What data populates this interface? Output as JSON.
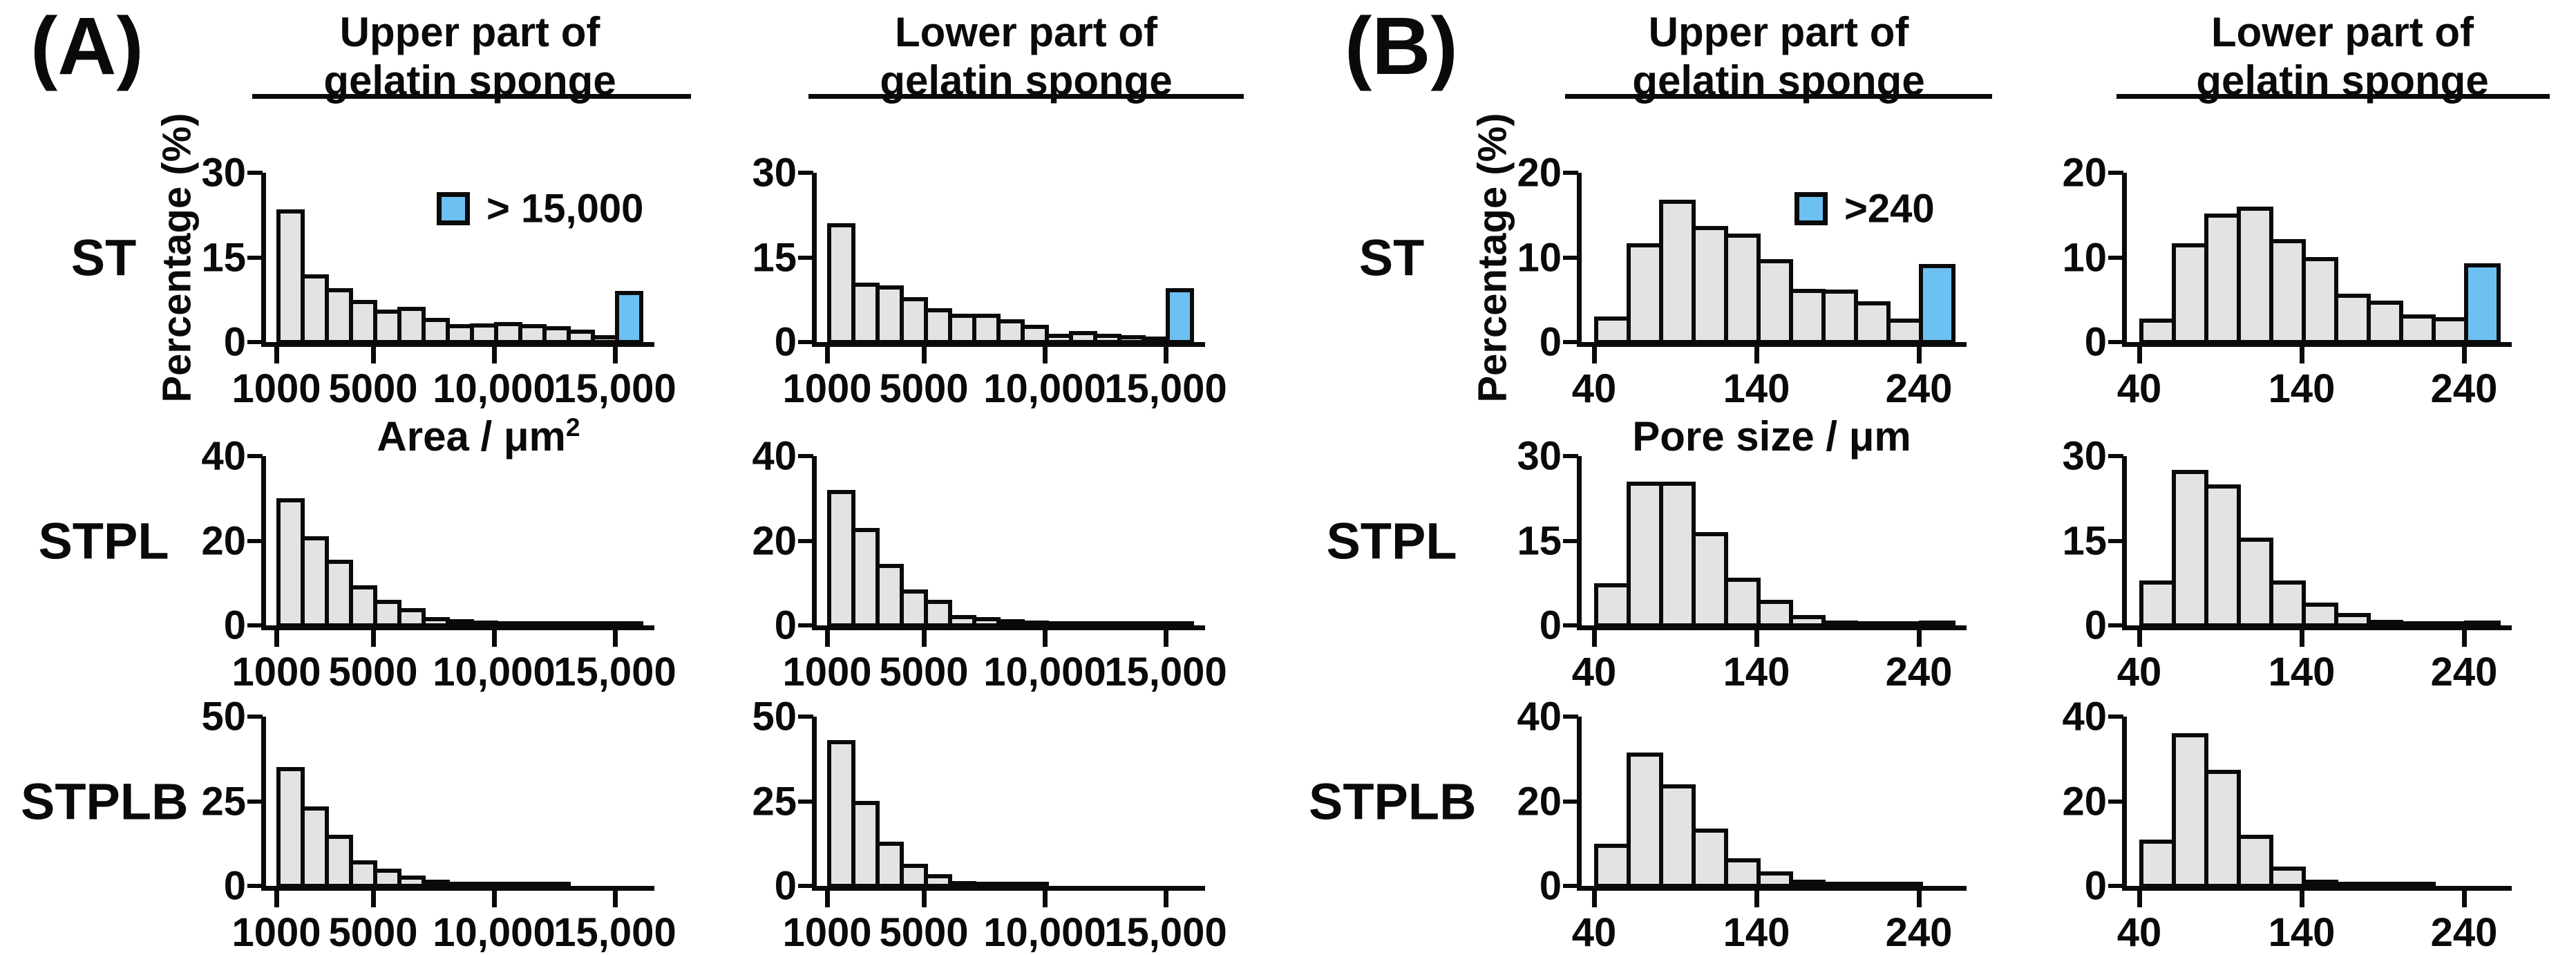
{
  "figure": {
    "background": "#ffffff",
    "colors": {
      "bar_fill": "#e3e3e3",
      "bar_border": "#0a0a0a",
      "overflow_blue": "#6cc0f2",
      "text": "#0a0a0a"
    },
    "panels": [
      {
        "label": "(A)",
        "column_headers": [
          [
            "Upper part of",
            "gelatin sponge"
          ],
          [
            "Lower part of",
            "gelatin sponge"
          ]
        ],
        "row_labels": [
          "ST",
          "STPL",
          "STPLB"
        ],
        "ylabel": "Percentage (%)",
        "xlabel": "Area / μm",
        "xlabel_sup": "2",
        "legend_label": "> 15,000",
        "x_tick_labels": [
          "1000",
          "5000",
          "10,000",
          "15,000"
        ]
      },
      {
        "label": "(B)",
        "column_headers": [
          [
            "Upper part of",
            "gelatin sponge"
          ],
          [
            "Lower part of",
            "gelatin sponge"
          ]
        ],
        "row_labels": [
          "ST",
          "STPL",
          "STPLB"
        ],
        "ylabel": "Percentage (%)",
        "xlabel": "Pore size / μm",
        "xlabel_sup": "",
        "legend_label": ">240",
        "x_tick_labels": [
          "40",
          "140",
          "240"
        ]
      }
    ]
  },
  "chart_data": [
    {
      "key": "A-ST-upper",
      "type": "bar",
      "panel": "A",
      "row": "ST",
      "column": "Upper part of gelatin sponge",
      "xlabel": "Area / μm2",
      "ylabel": "Percentage (%)",
      "bin_start": 1000,
      "bin_width": 1000,
      "ylim": [
        0,
        30
      ],
      "yticks": [
        0,
        15,
        30
      ],
      "x_tick_values": [
        1000,
        5000,
        10000,
        15000
      ],
      "values": [
        23.5,
        12,
        9.5,
        7.5,
        5.8,
        6.3,
        4.3,
        3.2,
        3.3,
        3.5,
        3.2,
        2.8,
        2.2,
        1.2
      ],
      "overflow_label": "> 15,000",
      "overflow_value": 9.0,
      "overflow_is_blue": true,
      "legend": "> 15,000"
    },
    {
      "key": "A-ST-lower",
      "type": "bar",
      "panel": "A",
      "row": "ST",
      "column": "Lower part of gelatin sponge",
      "bin_start": 1000,
      "bin_width": 1000,
      "ylim": [
        0,
        30
      ],
      "yticks": [
        0,
        15,
        30
      ],
      "x_tick_values": [
        1000,
        5000,
        10000,
        15000
      ],
      "values": [
        21,
        10.5,
        10,
        8,
        6,
        5,
        5,
        4,
        3,
        1.5,
        2,
        1.5,
        1.2,
        1
      ],
      "overflow_label": "> 15,000",
      "overflow_value": 9.5,
      "overflow_is_blue": true
    },
    {
      "key": "A-STPL-upper",
      "type": "bar",
      "panel": "A",
      "row": "STPL",
      "column": "Upper part of gelatin sponge",
      "bin_start": 1000,
      "bin_width": 1000,
      "ylim": [
        0,
        40
      ],
      "yticks": [
        0,
        20,
        40
      ],
      "x_tick_values": [
        1000,
        5000,
        10000,
        15000
      ],
      "values": [
        30,
        21,
        15.5,
        9.5,
        6,
        4,
        2,
        1.5,
        1.2,
        1,
        0.8,
        0.6,
        0.5,
        0.5
      ],
      "overflow_label": "> 15,000",
      "overflow_value": 0.8,
      "overflow_is_blue": false
    },
    {
      "key": "A-STPL-lower",
      "type": "bar",
      "panel": "A",
      "row": "STPL",
      "column": "Lower part of gelatin sponge",
      "bin_start": 1000,
      "bin_width": 1000,
      "ylim": [
        0,
        40
      ],
      "yticks": [
        0,
        20,
        40
      ],
      "x_tick_values": [
        1000,
        5000,
        10000,
        15000
      ],
      "values": [
        32,
        23,
        14.5,
        8.5,
        6,
        2.5,
        2,
        1.5,
        1.2,
        1,
        0.8,
        0.5,
        0.4,
        0.4
      ],
      "overflow_label": "> 15,000",
      "overflow_value": 0.6,
      "overflow_is_blue": false
    },
    {
      "key": "A-STPLB-upper",
      "type": "bar",
      "panel": "A",
      "row": "STPLB",
      "column": "Upper part of gelatin sponge",
      "bin_start": 1000,
      "bin_width": 1000,
      "ylim": [
        0,
        50
      ],
      "yticks": [
        0,
        25,
        50
      ],
      "x_tick_values": [
        1000,
        5000,
        10000,
        15000
      ],
      "values": [
        35,
        23.5,
        15,
        7.5,
        5,
        3,
        1.8,
        1.2,
        0.8,
        0.5,
        0.4,
        0.3,
        0.2,
        0.2
      ],
      "overflow_label": "> 15,000",
      "overflow_value": 0,
      "overflow_is_blue": false
    },
    {
      "key": "A-STPLB-lower",
      "type": "bar",
      "panel": "A",
      "row": "STPLB",
      "column": "Lower part of gelatin sponge",
      "bin_start": 1000,
      "bin_width": 1000,
      "ylim": [
        0,
        50
      ],
      "yticks": [
        0,
        25,
        50
      ],
      "x_tick_values": [
        1000,
        5000,
        10000,
        15000
      ],
      "values": [
        43,
        25,
        13,
        6.5,
        3.5,
        1.5,
        1,
        0.5,
        0.3,
        0.2,
        0.1,
        0.1,
        0.1,
        0.1
      ],
      "overflow_label": "> 15,000",
      "overflow_value": 0,
      "overflow_is_blue": false
    },
    {
      "key": "B-ST-upper",
      "type": "bar",
      "panel": "B",
      "row": "ST",
      "column": "Upper part of gelatin sponge",
      "xlabel": "Pore size / μm",
      "ylabel": "Percentage (%)",
      "bin_start": 40,
      "bin_width": 20,
      "ylim": [
        0,
        20
      ],
      "yticks": [
        0,
        10,
        20
      ],
      "x_tick_values": [
        40,
        140,
        240
      ],
      "values": [
        3,
        11.7,
        16.8,
        13.7,
        12.8,
        9.8,
        6.3,
        6.2,
        4.8,
        2.8
      ],
      "overflow_label": ">240",
      "overflow_value": 9.2,
      "overflow_is_blue": true,
      "legend": ">240"
    },
    {
      "key": "B-ST-lower",
      "type": "bar",
      "panel": "B",
      "row": "ST",
      "column": "Lower part of gelatin sponge",
      "bin_start": 40,
      "bin_width": 20,
      "ylim": [
        0,
        20
      ],
      "yticks": [
        0,
        10,
        20
      ],
      "x_tick_values": [
        40,
        140,
        240
      ],
      "values": [
        2.8,
        11.7,
        15.2,
        16,
        12.2,
        10,
        5.7,
        4.9,
        3.3,
        2.9
      ],
      "overflow_label": ">240",
      "overflow_value": 9.3,
      "overflow_is_blue": true
    },
    {
      "key": "B-STPL-upper",
      "type": "bar",
      "panel": "B",
      "row": "STPL",
      "column": "Upper part of gelatin sponge",
      "bin_start": 40,
      "bin_width": 20,
      "ylim": [
        0,
        30
      ],
      "yticks": [
        0,
        15,
        30
      ],
      "x_tick_values": [
        40,
        140,
        240
      ],
      "values": [
        7.5,
        25.5,
        25.5,
        16.5,
        8.5,
        4.5,
        1.8,
        0.8,
        0.7,
        0.5
      ],
      "overflow_label": ">240",
      "overflow_value": 0.8,
      "overflow_is_blue": false
    },
    {
      "key": "B-STPL-lower",
      "type": "bar",
      "panel": "B",
      "row": "STPL",
      "column": "Lower part of gelatin sponge",
      "bin_start": 40,
      "bin_width": 20,
      "ylim": [
        0,
        30
      ],
      "yticks": [
        0,
        15,
        30
      ],
      "x_tick_values": [
        40,
        140,
        240
      ],
      "values": [
        8,
        27.5,
        25,
        15.5,
        8,
        4,
        2.2,
        1,
        0.7,
        0.5
      ],
      "overflow_label": ">240",
      "overflow_value": 0.8,
      "overflow_is_blue": false
    },
    {
      "key": "B-STPLB-upper",
      "type": "bar",
      "panel": "B",
      "row": "STPLB",
      "column": "Upper part of gelatin sponge",
      "bin_start": 40,
      "bin_width": 20,
      "ylim": [
        0,
        40
      ],
      "yticks": [
        0,
        20,
        40
      ],
      "x_tick_values": [
        40,
        140,
        240
      ],
      "values": [
        10,
        31.5,
        24,
        13.5,
        6.5,
        3.5,
        1.5,
        1,
        0.5,
        0.3
      ],
      "overflow_label": ">240",
      "overflow_value": 0,
      "overflow_is_blue": false
    },
    {
      "key": "B-STPLB-lower",
      "type": "bar",
      "panel": "B",
      "row": "STPLB",
      "column": "Lower part of gelatin sponge",
      "bin_start": 40,
      "bin_width": 20,
      "ylim": [
        0,
        40
      ],
      "yticks": [
        0,
        20,
        40
      ],
      "x_tick_values": [
        40,
        140,
        240
      ],
      "values": [
        11,
        36,
        27.5,
        12,
        4.5,
        1.5,
        1,
        0.5,
        0.3,
        0.2
      ],
      "overflow_label": ">240",
      "overflow_value": 0,
      "overflow_is_blue": false
    }
  ]
}
